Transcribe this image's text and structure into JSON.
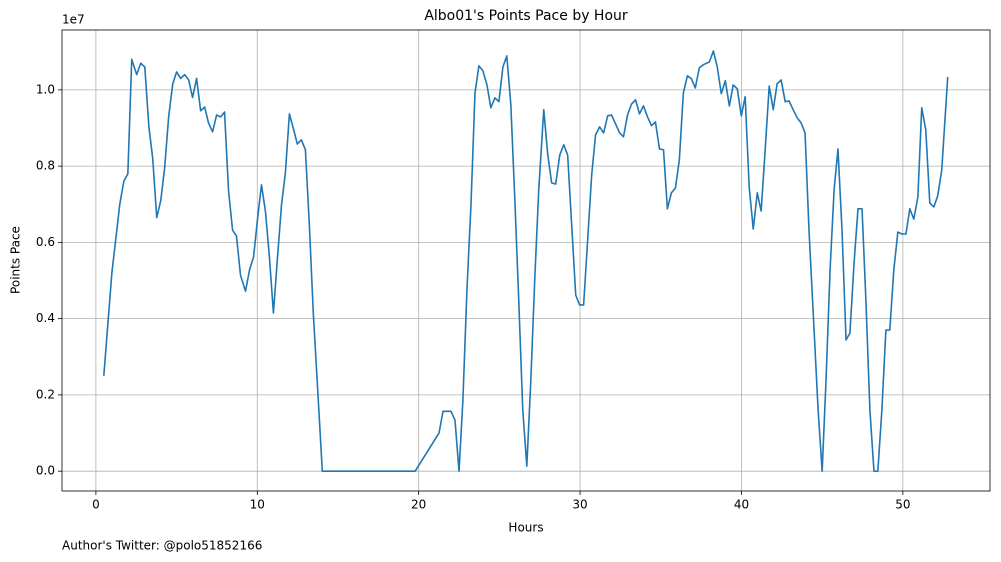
{
  "chart_data": {
    "type": "line",
    "title": "Albo01's Points Pace by Hour",
    "xlabel": "Hours",
    "ylabel": "Points Pace",
    "y_offset_label": "1e7",
    "footer": "Author's Twitter: @polo51852166",
    "x": [
      0.49,
      0.99,
      1.48,
      1.73,
      1.98,
      2.22,
      2.53,
      2.78,
      3.03,
      3.28,
      3.52,
      3.77,
      4.02,
      4.26,
      4.51,
      4.76,
      5.0,
      5.25,
      5.5,
      5.75,
      5.99,
      6.24,
      6.49,
      6.74,
      6.98,
      7.23,
      7.48,
      7.73,
      7.97,
      8.22,
      8.47,
      8.71,
      8.96,
      9.27,
      9.52,
      9.77,
      10.01,
      10.26,
      10.51,
      10.75,
      11.0,
      11.25,
      11.5,
      11.74,
      11.99,
      12.24,
      12.48,
      12.73,
      12.98,
      13.23,
      13.47,
      13.78,
      14.03,
      19.78,
      21.26,
      21.51,
      22.0,
      22.25,
      22.5,
      22.74,
      22.99,
      23.24,
      23.49,
      23.73,
      23.98,
      24.23,
      24.47,
      24.72,
      24.97,
      25.22,
      25.46,
      25.71,
      25.96,
      26.2,
      26.45,
      26.7,
      26.95,
      27.19,
      27.44,
      27.75,
      28.0,
      28.24,
      28.49,
      28.74,
      28.99,
      29.23,
      29.48,
      29.73,
      29.97,
      30.22,
      30.47,
      30.72,
      30.96,
      31.21,
      31.46,
      31.71,
      31.95,
      32.2,
      32.45,
      32.69,
      32.94,
      33.19,
      33.44,
      33.68,
      33.93,
      34.18,
      34.43,
      34.67,
      34.92,
      35.17,
      35.41,
      35.66,
      35.91,
      36.15,
      36.4,
      36.65,
      36.9,
      37.14,
      37.39,
      37.64,
      38.01,
      38.26,
      38.5,
      38.75,
      39.0,
      39.25,
      39.49,
      39.74,
      39.99,
      40.23,
      40.48,
      40.73,
      40.98,
      41.22,
      41.47,
      41.72,
      41.97,
      42.21,
      42.46,
      42.71,
      42.95,
      43.2,
      43.45,
      43.7,
      43.94,
      44.19,
      44.5,
      44.75,
      45.0,
      45.24,
      45.49,
      45.74,
      45.98,
      46.23,
      46.48,
      46.72,
      46.97,
      47.22,
      47.47,
      47.71,
      47.96,
      48.21,
      48.45,
      48.7,
      48.95,
      49.19,
      49.44,
      49.69,
      49.94,
      50.19,
      50.43,
      50.68,
      50.93,
      51.17,
      51.42,
      51.67,
      51.92,
      52.16,
      52.41,
      52.78
    ],
    "series": [
      {
        "name": "Points Pace",
        "color": "#1f77b4",
        "values": [
          0.25,
          0.52,
          0.7,
          0.76,
          0.78,
          1.08,
          1.04,
          1.07,
          1.06,
          0.905,
          0.82,
          0.665,
          0.71,
          0.795,
          0.93,
          1.015,
          1.047,
          1.03,
          1.04,
          1.026,
          0.98,
          1.03,
          0.945,
          0.955,
          0.913,
          0.89,
          0.934,
          0.929,
          0.942,
          0.735,
          0.632,
          0.617,
          0.514,
          0.472,
          0.528,
          0.562,
          0.659,
          0.751,
          0.68,
          0.562,
          0.415,
          0.559,
          0.698,
          0.782,
          0.937,
          0.898,
          0.858,
          0.869,
          0.843,
          0.643,
          0.415,
          0.186,
          0,
          0,
          0.1,
          0.157,
          0.157,
          0.134,
          0,
          0.186,
          0.475,
          0.698,
          0.992,
          1.063,
          1.05,
          1.013,
          0.953,
          0.979,
          0.969,
          1.06,
          1.089,
          0.961,
          0.711,
          0.449,
          0.16,
          0.013,
          0.239,
          0.501,
          0.738,
          0.948,
          0.829,
          0.756,
          0.753,
          0.829,
          0.856,
          0.829,
          0.646,
          0.462,
          0.436,
          0.436,
          0.606,
          0.777,
          0.882,
          0.903,
          0.887,
          0.932,
          0.934,
          0.911,
          0.887,
          0.877,
          0.934,
          0.963,
          0.974,
          0.937,
          0.958,
          0.929,
          0.906,
          0.916,
          0.845,
          0.843,
          0.688,
          0.73,
          0.743,
          0.816,
          0.992,
          1.037,
          1.029,
          1.005,
          1.058,
          1.066,
          1.073,
          1.102,
          1.06,
          0.99,
          1.024,
          0.958,
          1.013,
          1.003,
          0.932,
          0.982,
          0.745,
          0.635,
          0.73,
          0.682,
          0.843,
          1.01,
          0.948,
          1.016,
          1.026,
          0.969,
          0.971,
          0.948,
          0.927,
          0.913,
          0.887,
          0.627,
          0.37,
          0.16,
          0,
          0.239,
          0.528,
          0.738,
          0.845,
          0.633,
          0.344,
          0.362,
          0.541,
          0.688,
          0.688,
          0.449,
          0.16,
          0,
          0,
          0.16,
          0.37,
          0.37,
          0.528,
          0.627,
          0.622,
          0.622,
          0.688,
          0.661,
          0.719,
          0.953,
          0.895,
          0.703,
          0.693,
          0.722,
          0.79,
          1.034
        ]
      }
    ],
    "xlim": [
      -2.1,
      55.4
    ],
    "ylim": [
      -0.052,
      1.157
    ],
    "xticks": [
      0,
      10,
      20,
      30,
      40,
      50
    ],
    "yticks": [
      {
        "value": 0,
        "label": "0.0"
      },
      0.2,
      0.4,
      0.6,
      0.8,
      {
        "value": 1,
        "label": "1.0"
      }
    ],
    "grid": true
  }
}
